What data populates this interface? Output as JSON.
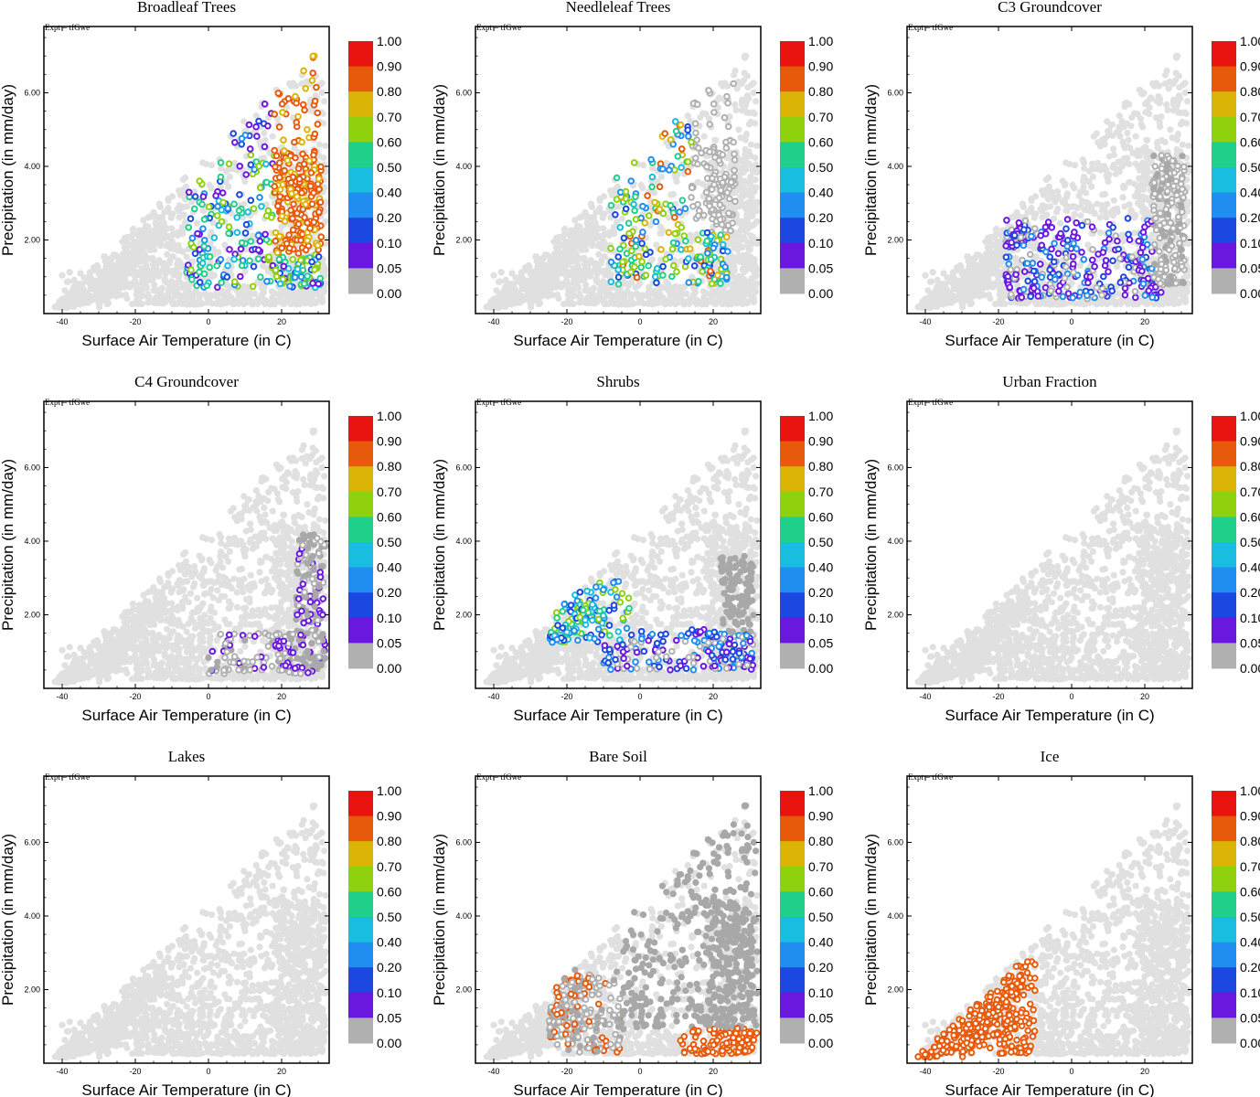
{
  "figure": {
    "expt_label": "Expt = tfGwe",
    "xlabel": "Surface Air Temperature (in C)",
    "ylabel": "Precipitation (in mm/day)",
    "x_ticks": [
      {
        "v": -40,
        "label": "-40"
      },
      {
        "v": -20,
        "label": "-20"
      },
      {
        "v": 0,
        "label": "0"
      },
      {
        "v": 20,
        "label": "20"
      }
    ],
    "y_ticks": [
      {
        "v": 2,
        "label": "2.00"
      },
      {
        "v": 4,
        "label": "4.00"
      },
      {
        "v": 6,
        "label": "6.00"
      }
    ],
    "xlim": [
      -45,
      33
    ],
    "ylim": [
      0,
      7.8
    ],
    "colorbar": {
      "labels": [
        "1.00",
        "0.90",
        "0.80",
        "0.70",
        "0.60",
        "0.50",
        "0.40",
        "0.20",
        "0.10",
        "0.05",
        "0.00"
      ],
      "colors": [
        "#e8120f",
        "#e85a0b",
        "#dcb405",
        "#8fd10d",
        "#20d08a",
        "#18bde0",
        "#1f8ef0",
        "#1a48e0",
        "#6a18e0",
        "#b0b0b0"
      ]
    },
    "background_color": "#e0e0e0",
    "zero_color": "#a8a8a8"
  },
  "chart_data": [
    {
      "type": "scatter",
      "title": "Broadleaf Trees",
      "xlabel": "Surface Air Temperature (in C)",
      "ylabel": "Precipitation (in mm/day)",
      "highlight": "broadleaf"
    },
    {
      "type": "scatter",
      "title": "Needleleaf Trees",
      "xlabel": "Surface Air Temperature (in C)",
      "ylabel": "Precipitation (in mm/day)",
      "highlight": "needleleaf"
    },
    {
      "type": "scatter",
      "title": "C3 Groundcover",
      "xlabel": "Surface Air Temperature (in C)",
      "ylabel": "Precipitation (in mm/day)",
      "highlight": "c3"
    },
    {
      "type": "scatter",
      "title": "C4 Groundcover",
      "xlabel": "Surface Air Temperature (in C)",
      "ylabel": "Precipitation (in mm/day)",
      "highlight": "c4"
    },
    {
      "type": "scatter",
      "title": "Shrubs",
      "xlabel": "Surface Air Temperature (in C)",
      "ylabel": "Precipitation (in mm/day)",
      "highlight": "shrubs"
    },
    {
      "type": "scatter",
      "title": "Urban Fraction",
      "xlabel": "Surface Air Temperature (in C)",
      "ylabel": "Precipitation (in mm/day)",
      "highlight": "none"
    },
    {
      "type": "scatter",
      "title": "Lakes",
      "xlabel": "Surface Air Temperature (in C)",
      "ylabel": "Precipitation (in mm/day)",
      "highlight": "none"
    },
    {
      "type": "scatter",
      "title": "Bare Soil",
      "xlabel": "Surface Air Temperature (in C)",
      "ylabel": "Precipitation (in mm/day)",
      "highlight": "baresoil"
    },
    {
      "type": "scatter",
      "title": "Ice",
      "xlabel": "Surface Air Temperature (in C)",
      "ylabel": "Precipitation (in mm/day)",
      "highlight": "ice"
    }
  ]
}
